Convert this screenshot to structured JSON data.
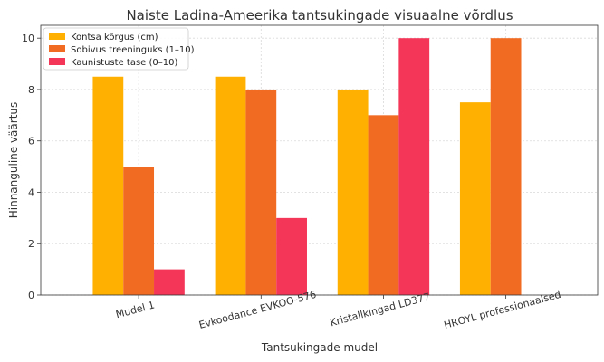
{
  "chart_data": {
    "type": "bar",
    "title": "Naiste Ladina-Ameerika tantsukingade visuaalne võrdlus",
    "xlabel": "Tantsukingade mudel",
    "ylabel": "Hinnanguline väärtus",
    "categories": [
      "Mudel 1",
      "Evkoodance EVKOO-576",
      "Kristallkingad LD377",
      "HROYL professionaalsed"
    ],
    "ylim": [
      0,
      10.5
    ],
    "yticks": [
      0,
      2,
      4,
      6,
      8,
      10
    ],
    "grid": true,
    "legend_position": "top-left",
    "series": [
      {
        "name": "Kontsa kõrgus (cm)",
        "color": "#FFB000",
        "values": [
          8.5,
          8.5,
          8.0,
          7.5
        ]
      },
      {
        "name": "Sobivus treeninguks (1–10)",
        "color": "#F26B23",
        "values": [
          5,
          8,
          7,
          10
        ]
      },
      {
        "name": "Kaunistuste tase (0–10)",
        "color": "#F43658",
        "values": [
          1,
          3,
          10,
          0
        ]
      }
    ]
  }
}
